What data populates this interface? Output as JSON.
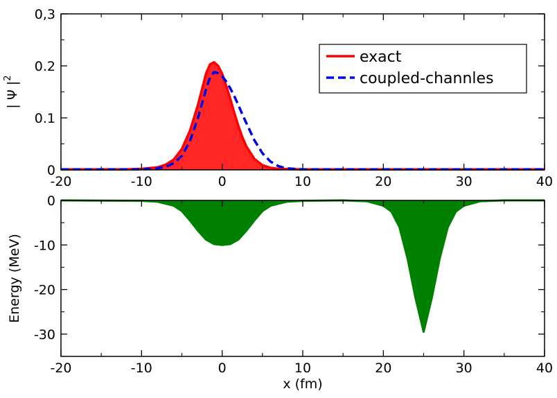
{
  "chart_data": [
    {
      "type": "area",
      "ylabel": "| Ψ |",
      "ylabel_sup": "2",
      "xlim": [
        -20,
        40
      ],
      "ylim": [
        0,
        0.3
      ],
      "x_ticks": [
        -20,
        -10,
        0,
        10,
        20,
        30,
        40
      ],
      "x_tick_labels": [
        "-20",
        "-10",
        "0",
        "10",
        "20",
        "30",
        "40"
      ],
      "y_ticks": [
        0,
        0.1,
        0.2,
        0.3
      ],
      "y_tick_labels": [
        "0",
        "0.1",
        "0.2",
        "0,3"
      ],
      "grid": false,
      "legend_position": "top-right",
      "series": [
        {
          "name": "exact",
          "style": "solid filled",
          "color": "#ff0000",
          "x": [
            -20,
            -12,
            -10,
            -8,
            -7,
            -6,
            -5,
            -4,
            -3,
            -2.5,
            -2,
            -1.5,
            -1,
            -0.5,
            0,
            0.5,
            1,
            1.5,
            2,
            2.5,
            3,
            4,
            5,
            6,
            7,
            10,
            20,
            30,
            40
          ],
          "y": [
            0.001,
            0.001,
            0.002,
            0.005,
            0.01,
            0.02,
            0.04,
            0.075,
            0.125,
            0.155,
            0.185,
            0.203,
            0.207,
            0.2,
            0.185,
            0.162,
            0.137,
            0.11,
            0.085,
            0.063,
            0.045,
            0.021,
            0.009,
            0.004,
            0.002,
            0.001,
            0.001,
            0.001,
            0.001
          ]
        },
        {
          "name": "coupled-channles",
          "style": "dashed",
          "color": "#0000e6",
          "x": [
            -20,
            -12,
            -10,
            -8,
            -7,
            -6,
            -5,
            -4,
            -3,
            -2,
            -1.5,
            -1,
            -0.5,
            0,
            0.5,
            1,
            1.5,
            2,
            2.5,
            3,
            4,
            5,
            6,
            7,
            8,
            10,
            20,
            30,
            40
          ],
          "y": [
            0.001,
            0.001,
            0.001,
            0.003,
            0.006,
            0.013,
            0.027,
            0.055,
            0.1,
            0.155,
            0.178,
            0.188,
            0.186,
            0.18,
            0.17,
            0.157,
            0.142,
            0.125,
            0.107,
            0.09,
            0.057,
            0.032,
            0.016,
            0.007,
            0.003,
            0.001,
            0.001,
            0.001,
            0.001
          ]
        }
      ]
    },
    {
      "type": "area",
      "ylabel": "Energy (MeV)",
      "xlabel": "x (fm)",
      "xlim": [
        -20,
        40
      ],
      "ylim": [
        -35,
        0
      ],
      "x_ticks": [
        -20,
        -10,
        0,
        10,
        20,
        30,
        40
      ],
      "x_tick_labels": [
        "-20",
        "-10",
        "0",
        "10",
        "20",
        "30",
        "40"
      ],
      "y_ticks": [
        0,
        -10,
        -20,
        -30
      ],
      "y_tick_labels": [
        "0",
        "-10",
        "-20",
        "-30"
      ],
      "grid": false,
      "series": [
        {
          "style": "filled",
          "color": "#008000",
          "x": [
            -20,
            -10,
            -8,
            -6,
            -5,
            -4,
            -3,
            -2,
            -1,
            0,
            1,
            2,
            3,
            4,
            5,
            6,
            8,
            10,
            15,
            18,
            20,
            21,
            22,
            23,
            24,
            25,
            26,
            27,
            28,
            29,
            30,
            32,
            35,
            40
          ],
          "y": [
            0,
            -0.1,
            -0.3,
            -1.2,
            -2.4,
            -4.5,
            -6.8,
            -8.8,
            -9.8,
            -10,
            -9.8,
            -8.8,
            -6.8,
            -4.5,
            -2.4,
            -1.2,
            -0.3,
            -0.1,
            0,
            -0.2,
            -1.2,
            -2.5,
            -6,
            -13,
            -22,
            -29.5,
            -22,
            -13,
            -6,
            -2.5,
            -1.2,
            -0.2,
            0,
            0
          ]
        }
      ]
    }
  ]
}
